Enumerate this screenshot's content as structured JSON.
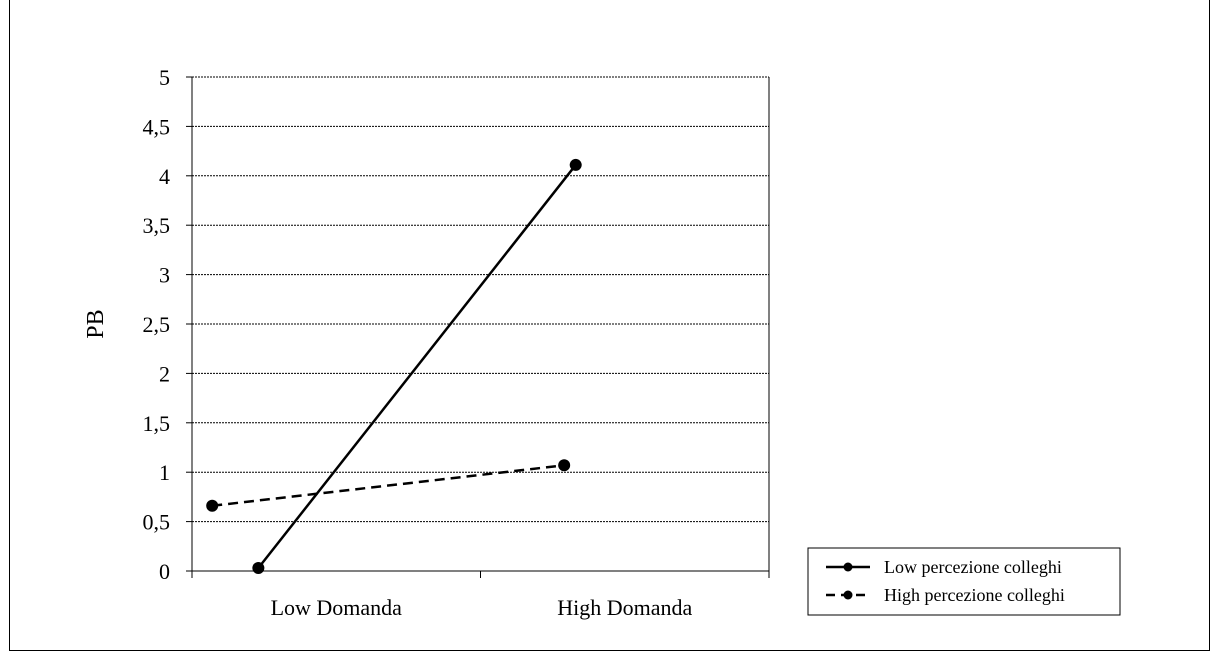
{
  "chart_data": {
    "type": "line",
    "title": "",
    "xlabel": "",
    "ylabel": "PB",
    "ylim": [
      0,
      5
    ],
    "yticks": [
      0,
      0.5,
      1,
      1.5,
      2,
      2.5,
      3,
      3.5,
      4,
      4.5,
      5
    ],
    "ytick_labels": [
      "0",
      "0,5",
      "1",
      "1,5",
      "2",
      "2,5",
      "3",
      "3,5",
      "4",
      "4,5",
      "5"
    ],
    "categories": [
      "Low Domanda",
      "High Domanda"
    ],
    "grid": true,
    "legend_position": "bottom-right",
    "series": [
      {
        "name": "Low percezione colleghi",
        "style": "solid",
        "color": "#000000",
        "points": [
          {
            "category": "Low Domanda",
            "x_offset": 0.23,
            "y": 0.03
          },
          {
            "category": "High Domanda",
            "x_offset": 0.33,
            "y": 4.11
          }
        ]
      },
      {
        "name": "High percezione colleghi",
        "style": "dashed",
        "color": "#000000",
        "points": [
          {
            "category": "Low Domanda",
            "x_offset": 0.07,
            "y": 0.66
          },
          {
            "category": "High Domanda",
            "x_offset": 0.29,
            "y": 1.07
          }
        ]
      }
    ]
  }
}
